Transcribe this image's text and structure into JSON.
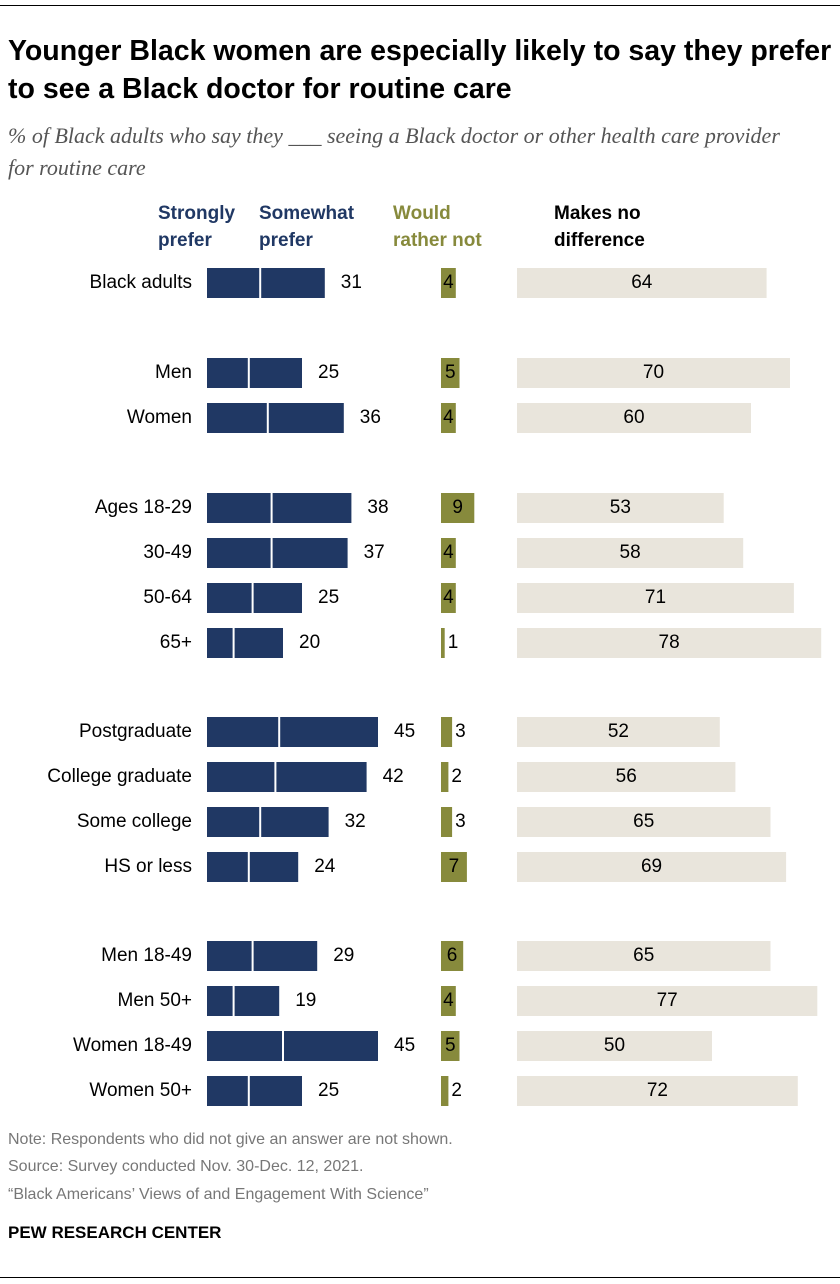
{
  "chart_data": {
    "type": "bar",
    "title": "Younger Black women are especially likely to say they prefer to see a Black doctor for routine care",
    "subtitle": "% of Black adults who say they ___ seeing a Black doctor or other health care provider for routine care",
    "categories": [
      "Black adults",
      "Men",
      "Women",
      "Ages 18-29",
      "30-49",
      "50-64",
      "65+",
      "Postgraduate",
      "College graduate",
      "Some college",
      "HS or less",
      "Men 18-49",
      "Men 50+",
      "Women 18-49",
      "Women 50+"
    ],
    "series": [
      {
        "name": "Strongly prefer",
        "color": "#203864",
        "values": [
          14,
          11,
          16,
          17,
          17,
          12,
          7,
          19,
          18,
          14,
          11,
          12,
          7,
          20,
          11
        ]
      },
      {
        "name": "Somewhat prefer",
        "color": "#203864",
        "values": [
          17,
          14,
          20,
          21,
          20,
          13,
          13,
          26,
          24,
          18,
          13,
          17,
          12,
          25,
          14
        ]
      },
      {
        "name": "Would rather not",
        "color": "#878a3c",
        "values": [
          4,
          5,
          4,
          9,
          4,
          4,
          1,
          3,
          2,
          3,
          7,
          6,
          4,
          5,
          2
        ]
      },
      {
        "name": "Makes no difference",
        "color": "#e9e5dc",
        "values": [
          64,
          70,
          60,
          53,
          58,
          71,
          78,
          52,
          56,
          65,
          69,
          65,
          77,
          50,
          72
        ]
      }
    ],
    "prefer_totals": [
      31,
      25,
      36,
      38,
      37,
      25,
      20,
      45,
      42,
      32,
      24,
      29,
      19,
      45,
      25
    ],
    "note": "Note: Respondents who did not give an answer are not shown.",
    "source": "Source: Survey conducted Nov. 30-Dec. 12, 2021.",
    "report": "“Black Americans’ Views of and Engagement With Science”",
    "credit": "PEW RESEARCH CENTER"
  }
}
